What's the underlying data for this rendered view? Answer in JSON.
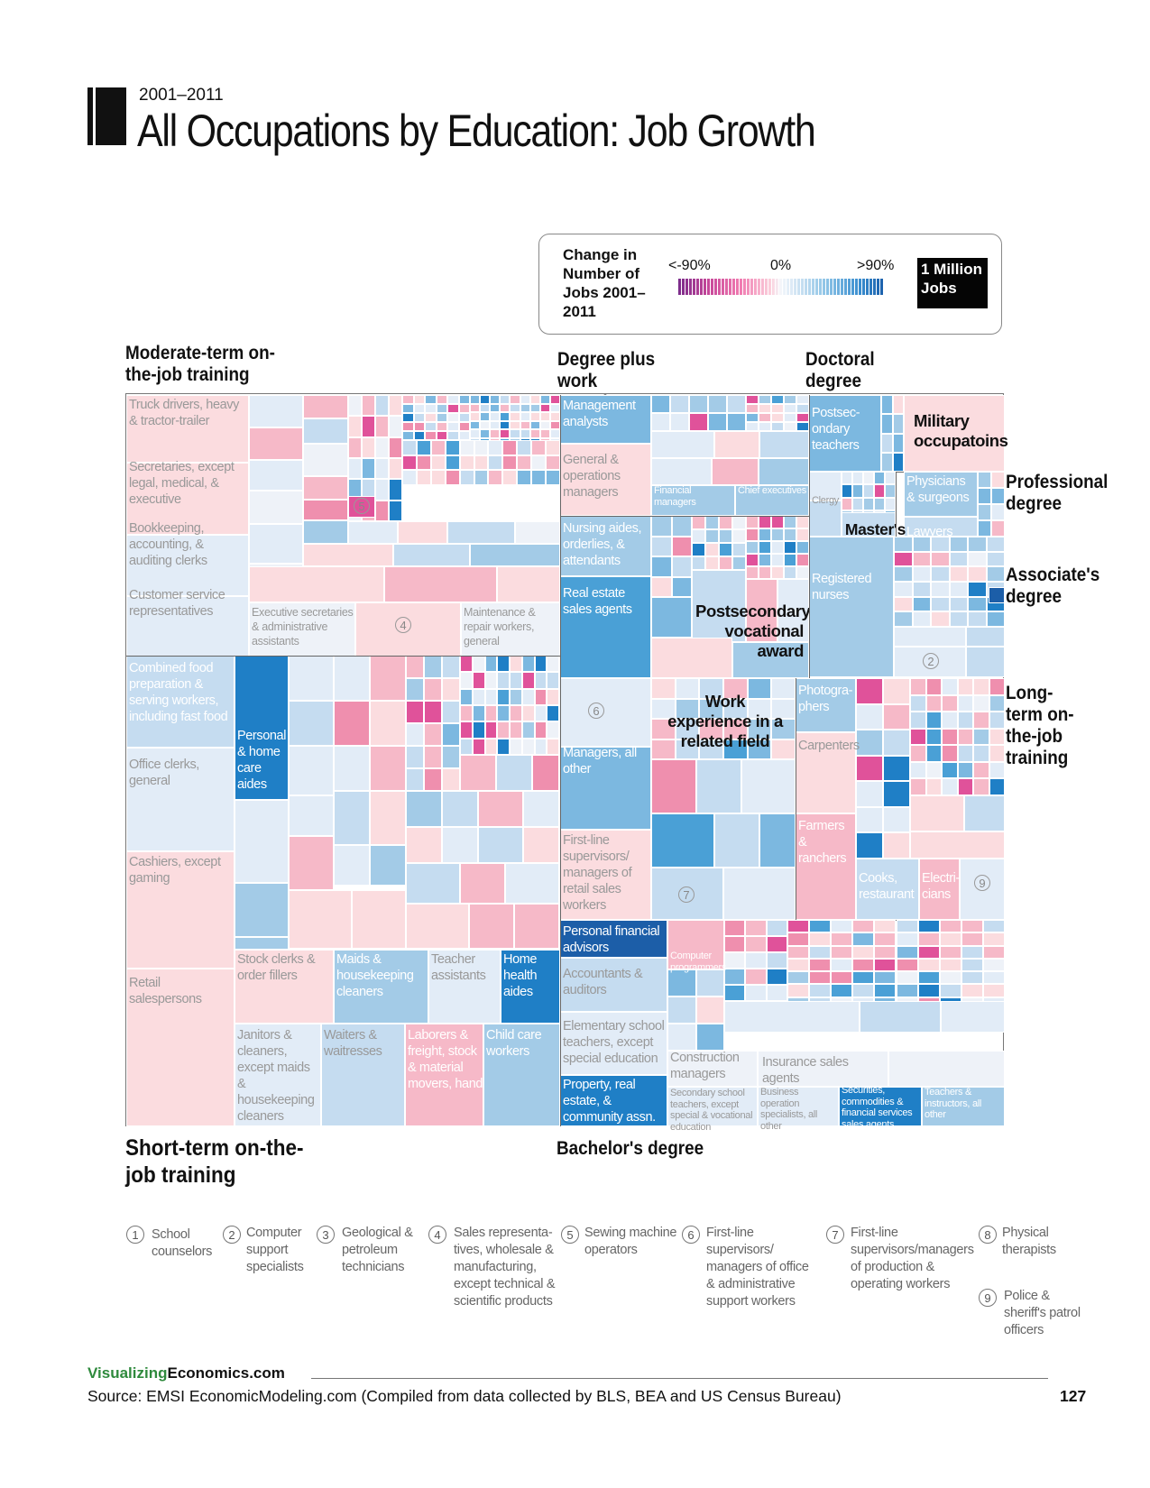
{
  "header": {
    "year": "2001–2011",
    "title": "All Occupations by Education: Job Growth"
  },
  "legend": {
    "title": "Change in Number of Jobs 2001–2011",
    "low": "<-90%",
    "mid": "0%",
    "high": ">90%",
    "scale_label": "1 Million Jobs",
    "colors": {
      "strong_decline": "#7a2b8a",
      "decline": "#f07ab0",
      "neutral": "#f4f7fb",
      "growth": "#8cc3e6",
      "strong_growth": "#1a5fab"
    }
  },
  "categories": {
    "moderate": "Moderate-term on-the-job training",
    "degree_plus": "Degree plus work experience",
    "doctoral": "Doctoral degree",
    "professional": "Professional degree",
    "associates": "Associate's degree",
    "long_term": "Long-term on-the-job training",
    "short_term": "Short-term on-the-job training",
    "bachelors": "Bachelor's degree",
    "military": "Military occupatoins",
    "masters": "Master's degree",
    "postsecondary": "Postsecondary vocational award",
    "work_experience": "Work experience in a related field"
  },
  "chart_data": {
    "type": "treemap",
    "title": "All Occupations by Education: Job Growth",
    "size_measure": "Number of jobs",
    "color_measure": "Change in number of jobs 2001–2011 (%)",
    "color_range": [
      "<-90%",
      "0%",
      ">90%"
    ],
    "labels": {
      "truck": "Truck drivers, heavy & tractor-trailer",
      "secretaries": "Secretaries, except legal, medical, & executive",
      "bookkeeping": "Bookkeeping, accounting, & auditing clerks",
      "customer": "Customer service representatives",
      "exec_secretaries": "Executive secretaries & administrative assistants",
      "maintenance": "Maintenance & repair workers, general",
      "combined_food": "Combined food preparation & serving workers, including fast food",
      "personal_care": "Personal & home care aides",
      "office_clerks": "Office clerks, general",
      "cashiers": "Cashiers, except gaming",
      "retail": "Retail salespersons",
      "stock_clerks": "Stock clerks & order fillers",
      "maids": "Maids & housekeeping cleaners",
      "teacher_assistants": "Teacher assistants",
      "home_health": "Home health aides",
      "janitors": "Janitors & cleaners, except maids & housekeeping cleaners",
      "waiters": "Waiters & waitresses",
      "laborers": "Laborers & freight, stock & material movers, hand",
      "child_care": "Child care workers",
      "mgmt_analysts": "Management analysts",
      "general_ops": "General & operations managers",
      "financial_mgrs": "Financial managers",
      "chief_exec": "Chief executives",
      "nursing_aides": "Nursing aides, orderlies, & attendants",
      "real_estate": "Real estate sales agents",
      "postsec_teachers": "Postsec-ondary teachers",
      "clergy": "Clergy",
      "physicians": "Physicians & surgeons",
      "lawyers": "Lawyers",
      "registered_nurses": "Registered nurses",
      "managers_other": "Managers, all other",
      "first_line_retail": "First-line supervisors/ managers of retail sales workers",
      "photographers": "Photogra-phers",
      "carpenters": "Carpenters",
      "farmers": "Farmers & ranchers",
      "cooks": "Cooks, restaurant",
      "electricians": "Electri-cians",
      "personal_fin": "Personal financial advisors",
      "computer_prog": "Computer programmers",
      "accountants": "Accountants & auditors",
      "elementary": "Elementary school teachers, except special education",
      "construction_mgrs": "Construction managers",
      "insurance": "Insurance sales agents",
      "property": "Property, real estate, & community assn. managers",
      "secondary": "Secondary school teachers, except special & vocational education",
      "business_ops": "Business operation specialists, all other",
      "securities": "Securities, commodities & financial services sales agents",
      "teachers_other": "Teachers & instructors, all other"
    },
    "callouts": [
      "1",
      "2",
      "3",
      "4",
      "5",
      "6",
      "7",
      "8",
      "9"
    ]
  },
  "footnotes": [
    {
      "num": "1",
      "text": "School counselors"
    },
    {
      "num": "2",
      "text": "Computer support specialists"
    },
    {
      "num": "3",
      "text": "Geological & petroleum technicians"
    },
    {
      "num": "4",
      "text": "Sales representa-tives, wholesale & manufacturing, except technical & scientific products"
    },
    {
      "num": "5",
      "text": "Sewing machine operators"
    },
    {
      "num": "6",
      "text": "First-line supervisors/ managers of office & administrative support workers"
    },
    {
      "num": "7",
      "text": "First-line supervisors/managers of production & operating workers"
    },
    {
      "num": "8",
      "text": "Physical therapists"
    },
    {
      "num": "9",
      "text": "Police & sheriff's patrol officers"
    }
  ],
  "footer": {
    "brand_a": "Visualizing",
    "brand_b": "Economics.com",
    "source": "Source: EMSI EconomicModeling.com (Compiled from data collected by BLS, BEA and US Census Bureau)",
    "page": "127"
  }
}
